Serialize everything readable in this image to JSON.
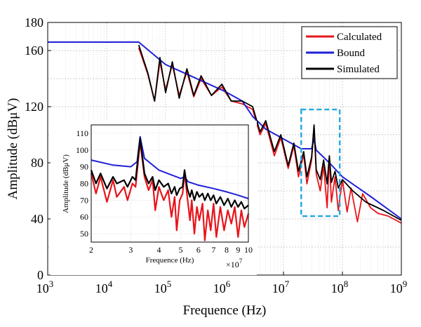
{
  "chart_data": [
    {
      "id": "main",
      "type": "line",
      "xlabel": "Frequence (Hz)",
      "ylabel": "Amplitude (dBμV)",
      "xscale": "log",
      "xlim": [
        1000,
        1000000000
      ],
      "ylim": [
        0,
        180
      ],
      "x_ticks": [
        {
          "base": "10",
          "exp": "3"
        },
        {
          "base": "10",
          "exp": "4"
        },
        {
          "base": "10",
          "exp": "5"
        },
        {
          "base": "10",
          "exp": "6"
        },
        {
          "base": "10",
          "exp": "7"
        },
        {
          "base": "10",
          "exp": "8"
        },
        {
          "base": "10",
          "exp": "9"
        }
      ],
      "y_ticks": [
        "0",
        "40",
        "80",
        "120",
        "160",
        "180"
      ],
      "y_tick_values": [
        0,
        40,
        80,
        120,
        160,
        180
      ],
      "grid": true,
      "legend": {
        "position": "top-right",
        "entries": [
          {
            "label": "Calculated",
            "color": "#e8141b"
          },
          {
            "label": "Bound",
            "color": "#1f20d8"
          },
          {
            "label": "Simulated",
            "color": "#000000"
          }
        ]
      },
      "highlight_region": {
        "x_range": [
          20000000,
          90000000
        ],
        "y_range": [
          42,
          118
        ],
        "color": "#29a8e0",
        "style": "dashed"
      },
      "series": [
        {
          "name": "Bound",
          "color": "#1f20d8",
          "points": [
            [
              1000,
              166
            ],
            [
              35000,
              166
            ],
            [
              100000,
              150
            ],
            [
              1000000,
              131
            ],
            [
              2000000,
              124
            ],
            [
              3000000,
              113
            ],
            [
              5000000,
              104
            ],
            [
              10000000,
              97
            ],
            [
              20000000,
              90
            ],
            [
              30000000,
              90
            ],
            [
              33000000,
              97
            ],
            [
              36000000,
              89
            ],
            [
              60000000,
              80
            ],
            [
              100000000,
              70
            ],
            [
              300000000,
              56
            ],
            [
              1000000000,
              40
            ]
          ]
        },
        {
          "name": "Calculated",
          "color": "#e8141b",
          "points": [
            [
              35000,
              162
            ],
            [
              50000,
              143
            ],
            [
              65000,
              124
            ],
            [
              80000,
              152
            ],
            [
              100000,
              132
            ],
            [
              130000,
              150
            ],
            [
              170000,
              128
            ],
            [
              230000,
              145
            ],
            [
              300000,
              127
            ],
            [
              400000,
              140
            ],
            [
              600000,
              128
            ],
            [
              900000,
              134
            ],
            [
              1300000,
              124
            ],
            [
              2000000,
              122
            ],
            [
              3000000,
              118
            ],
            [
              4000000,
              100
            ],
            [
              5000000,
              108
            ],
            [
              7000000,
              85
            ],
            [
              9000000,
              98
            ],
            [
              12000000,
              76
            ],
            [
              15000000,
              92
            ],
            [
              18000000,
              70
            ],
            [
              22000000,
              86
            ],
            [
              25000000,
              65
            ],
            [
              30000000,
              82
            ],
            [
              33000000,
              106
            ],
            [
              36000000,
              72
            ],
            [
              42000000,
              60
            ],
            [
              48000000,
              78
            ],
            [
              55000000,
              48
            ],
            [
              60000000,
              84
            ],
            [
              65000000,
              52
            ],
            [
              75000000,
              70
            ],
            [
              85000000,
              46
            ],
            [
              100000000,
              68
            ],
            [
              120000000,
              45
            ],
            [
              140000000,
              62
            ],
            [
              180000000,
              38
            ],
            [
              220000000,
              58
            ],
            [
              300000000,
              48
            ],
            [
              400000000,
              44
            ],
            [
              600000000,
              42
            ],
            [
              1000000000,
              37
            ]
          ]
        },
        {
          "name": "Simulated",
          "color": "#000000",
          "points": [
            [
              35000,
              164
            ],
            [
              50000,
              144
            ],
            [
              65000,
              124
            ],
            [
              80000,
              155
            ],
            [
              100000,
              130
            ],
            [
              130000,
              152
            ],
            [
              170000,
              126
            ],
            [
              230000,
              147
            ],
            [
              300000,
              128
            ],
            [
              400000,
              142
            ],
            [
              600000,
              128
            ],
            [
              900000,
              136
            ],
            [
              1300000,
              124
            ],
            [
              2000000,
              124
            ],
            [
              3000000,
              120
            ],
            [
              4000000,
              102
            ],
            [
              5000000,
              110
            ],
            [
              7000000,
              88
            ],
            [
              9000000,
              100
            ],
            [
              12000000,
              78
            ],
            [
              15000000,
              94
            ],
            [
              18000000,
              74
            ],
            [
              22000000,
              88
            ],
            [
              25000000,
              70
            ],
            [
              30000000,
              84
            ],
            [
              33000000,
              107
            ],
            [
              36000000,
              75
            ],
            [
              42000000,
              68
            ],
            [
              48000000,
              82
            ],
            [
              55000000,
              65
            ],
            [
              60000000,
              85
            ],
            [
              65000000,
              66
            ],
            [
              75000000,
              74
            ],
            [
              85000000,
              62
            ],
            [
              100000000,
              68
            ],
            [
              150000000,
              60
            ],
            [
              250000000,
              52
            ],
            [
              500000000,
              46
            ],
            [
              1000000000,
              39
            ]
          ]
        }
      ]
    },
    {
      "id": "inset",
      "type": "line",
      "xlabel": "Frequence (Hz)",
      "ylabel": "Amplitude (dBμV)",
      "xlim": [
        2,
        10
      ],
      "ylim": [
        45,
        115
      ],
      "x_ticks": [
        "2",
        "3",
        "4",
        "5",
        "6",
        "7",
        "8",
        "9",
        "10"
      ],
      "y_ticks": [
        "50",
        "60",
        "70",
        "80",
        "90",
        "100",
        "110"
      ],
      "x_multiplier": {
        "base": "×10",
        "exp": "7"
      },
      "grid": true,
      "series": [
        {
          "name": "Bound",
          "color": "#1f20d8",
          "points": [
            [
              2,
              94
            ],
            [
              2.5,
              91
            ],
            [
              3,
              90
            ],
            [
              3.2,
              93
            ],
            [
              3.3,
              108
            ],
            [
              3.45,
              95
            ],
            [
              4,
              88
            ],
            [
              5,
              83
            ],
            [
              5.2,
              84
            ],
            [
              5.4,
              81
            ],
            [
              6,
              79
            ],
            [
              7,
              77
            ],
            [
              8,
              75
            ],
            [
              9,
              73
            ],
            [
              10,
              71
            ]
          ]
        },
        {
          "name": "Calculated",
          "color": "#e8141b",
          "points": [
            [
              2,
              86
            ],
            [
              2.1,
              74
            ],
            [
              2.2,
              84
            ],
            [
              2.35,
              69
            ],
            [
              2.5,
              82
            ],
            [
              2.6,
              72
            ],
            [
              2.8,
              78
            ],
            [
              2.9,
              70
            ],
            [
              3.05,
              80
            ],
            [
              3.15,
              78
            ],
            [
              3.3,
              105
            ],
            [
              3.45,
              84
            ],
            [
              3.6,
              76
            ],
            [
              3.75,
              82
            ],
            [
              3.85,
              64
            ],
            [
              4,
              78
            ],
            [
              4.2,
              70
            ],
            [
              4.4,
              76
            ],
            [
              4.55,
              60
            ],
            [
              4.7,
              72
            ],
            [
              4.8,
              52
            ],
            [
              4.95,
              70
            ],
            [
              5.1,
              74
            ],
            [
              5.2,
              87
            ],
            [
              5.35,
              72
            ],
            [
              5.5,
              58
            ],
            [
              5.6,
              70
            ],
            [
              5.75,
              50
            ],
            [
              5.9,
              66
            ],
            [
              6.05,
              58
            ],
            [
              6.25,
              68
            ],
            [
              6.4,
              46
            ],
            [
              6.6,
              64
            ],
            [
              6.8,
              52
            ],
            [
              7,
              68
            ],
            [
              7.2,
              48
            ],
            [
              7.5,
              66
            ],
            [
              7.8,
              52
            ],
            [
              8.1,
              64
            ],
            [
              8.4,
              56
            ],
            [
              8.7,
              66
            ],
            [
              9,
              48
            ],
            [
              9.3,
              64
            ],
            [
              9.6,
              54
            ],
            [
              10,
              62
            ]
          ]
        },
        {
          "name": "Simulated",
          "color": "#000000",
          "points": [
            [
              2,
              88
            ],
            [
              2.1,
              80
            ],
            [
              2.2,
              86
            ],
            [
              2.35,
              77
            ],
            [
              2.5,
              84
            ],
            [
              2.6,
              80
            ],
            [
              2.8,
              82
            ],
            [
              2.9,
              78
            ],
            [
              3.05,
              84
            ],
            [
              3.15,
              82
            ],
            [
              3.3,
              107
            ],
            [
              3.45,
              86
            ],
            [
              3.6,
              80
            ],
            [
              3.75,
              84
            ],
            [
              3.85,
              76
            ],
            [
              4,
              82
            ],
            [
              4.2,
              78
            ],
            [
              4.4,
              80
            ],
            [
              4.55,
              74
            ],
            [
              4.7,
              78
            ],
            [
              4.8,
              73
            ],
            [
              4.95,
              77
            ],
            [
              5.1,
              78
            ],
            [
              5.2,
              88
            ],
            [
              5.35,
              77
            ],
            [
              5.5,
              72
            ],
            [
              5.6,
              76
            ],
            [
              5.75,
              70
            ],
            [
              5.9,
              75
            ],
            [
              6.05,
              72
            ],
            [
              6.25,
              74
            ],
            [
              6.4,
              70
            ],
            [
              6.6,
              74
            ],
            [
              6.8,
              70
            ],
            [
              7,
              73
            ],
            [
              7.2,
              68
            ],
            [
              7.5,
              72
            ],
            [
              7.8,
              67
            ],
            [
              8.1,
              71
            ],
            [
              8.4,
              66
            ],
            [
              8.7,
              70
            ],
            [
              9,
              66
            ],
            [
              9.3,
              69
            ],
            [
              9.6,
              65
            ],
            [
              10,
              67
            ]
          ]
        }
      ]
    }
  ]
}
